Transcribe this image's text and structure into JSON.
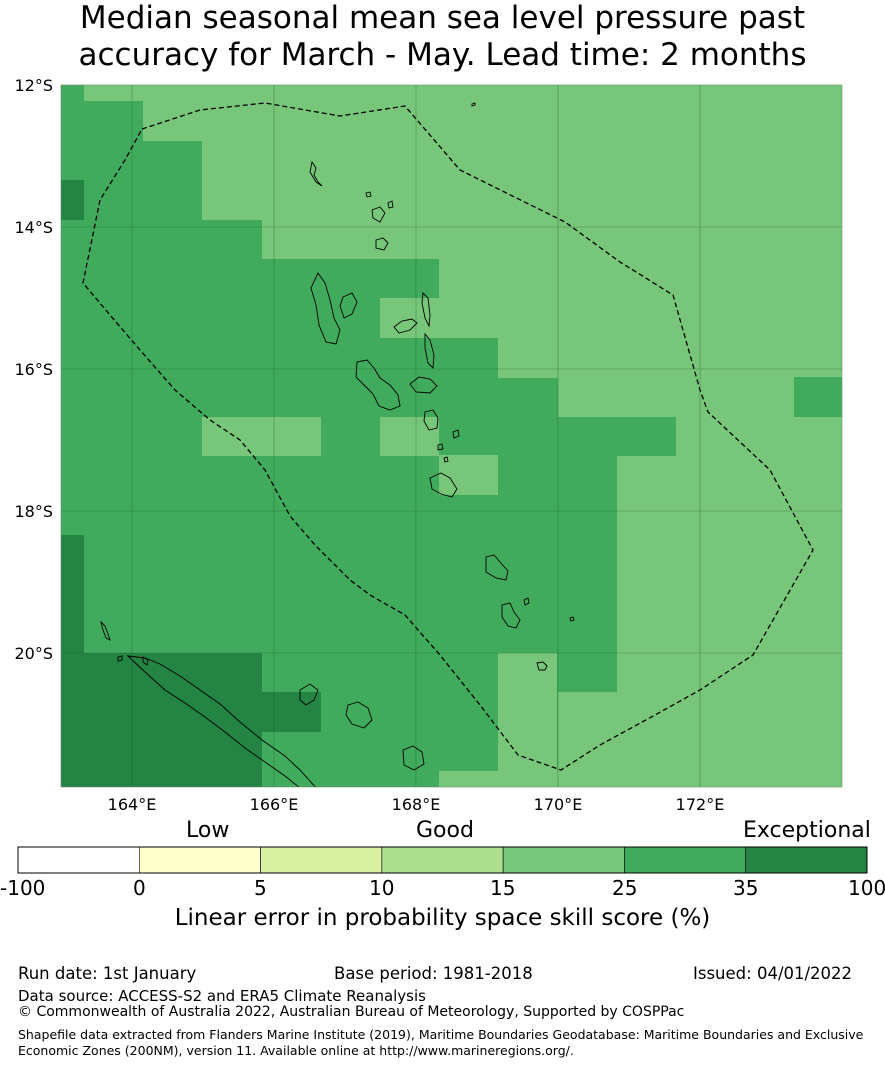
{
  "title": {
    "line1": "Median seasonal mean sea level pressure past",
    "line2": "accuracy for March - May. Lead time: 2 months"
  },
  "map": {
    "lat_labels": [
      "12°S",
      "14°S",
      "16°S",
      "18°S",
      "20°S"
    ],
    "lon_labels": [
      "164°E",
      "166°E",
      "168°E",
      "170°E",
      "172°E"
    ],
    "lon_range": [
      163.0,
      174.0
    ],
    "lat_range": [
      -21.9,
      -12.0
    ],
    "grid_lines": true,
    "eez_boundary": "dashed",
    "coastlines": true
  },
  "colorbar": {
    "categories": [
      {
        "label": "Low"
      },
      {
        "label": "Good"
      },
      {
        "label": "Exceptional"
      }
    ],
    "ticks": [
      "-100",
      "0",
      "5",
      "10",
      "15",
      "25",
      "35",
      "100"
    ],
    "colors": [
      "#ffffff",
      "#ffffcc",
      "#d9f0a3",
      "#addd8e",
      "#78c679",
      "#41ab5d",
      "#238443"
    ],
    "label": "Linear error in probability space skill score (%)"
  },
  "footer": {
    "run_date": "Run date: 1st January",
    "base_period": "Base period: 1981-2018",
    "issued": "Issued: 04/01/2022",
    "data_source": "Data source: ACCESS-S2 and ERA5 Climate Reanalysis",
    "copyright": "© Commonwealth of Australia 2022, Australian Bureau of Meteorology, Supported by COSPPac",
    "shapefile_line1": "Shapefile data extracted from Flanders Marine Institute (2019), Maritime Boundaries Geodatabase: Maritime Boundaries and Exclusive",
    "shapefile_line2": "Economic Zones (200NM), version 11. Available online at http://www.marineregions.org/."
  }
}
